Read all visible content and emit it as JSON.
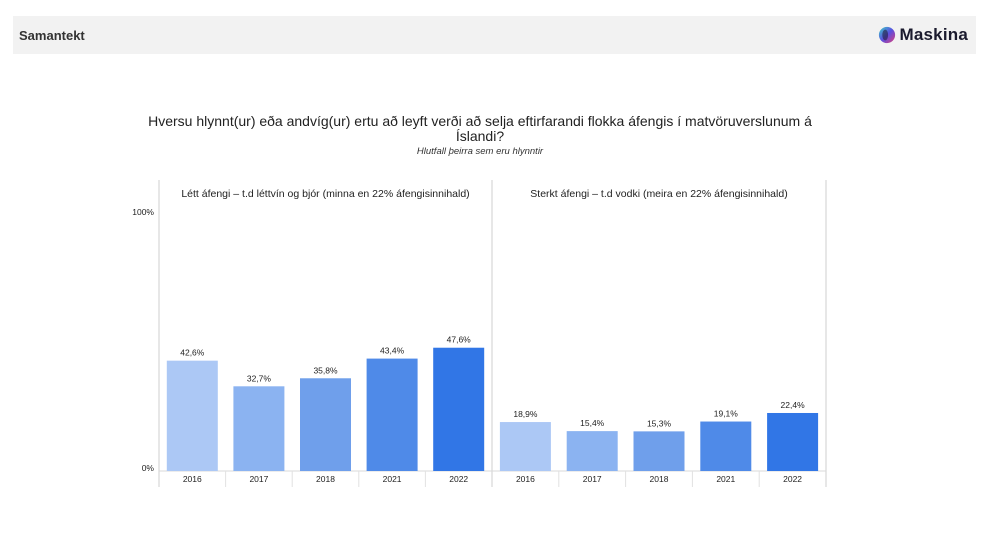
{
  "header": {
    "title": "Samantekt",
    "brand_name": "Maskina"
  },
  "chart_data": {
    "type": "bar",
    "title": "Hversu hlynnt(ur) eða andvíg(ur) ertu að leyft verði að selja eftirfarandi flokka áfengis í matvöruverslunum á Íslandi?",
    "subtitle": "Hlutfall þeirra sem eru hlynntir",
    "ylim": [
      0,
      100
    ],
    "y_tick_labels": [
      "100%",
      "0%"
    ],
    "panels": [
      {
        "label": "Létt áfengi – t.d léttvín og bjór (minna en 22% áfengisinnihald)",
        "categories": [
          "2016",
          "2017",
          "2018",
          "2021",
          "2022"
        ],
        "values": [
          42.6,
          32.7,
          35.8,
          43.4,
          47.6
        ],
        "value_labels": [
          "42,6%",
          "32,7%",
          "35,8%",
          "43,4%",
          "47,6%"
        ]
      },
      {
        "label": "Sterkt áfengi – t.d vodki (meira en 22% áfengisinnihald)",
        "categories": [
          "2016",
          "2017",
          "2018",
          "2021",
          "2022"
        ],
        "values": [
          18.9,
          15.4,
          15.3,
          19.1,
          22.4
        ],
        "value_labels": [
          "18,9%",
          "15,4%",
          "15,3%",
          "19,1%",
          "22,4%"
        ]
      }
    ],
    "colors": [
      "#acc8f5",
      "#8bb3f1",
      "#6f9feb",
      "#4f8ae8",
      "#3176e6"
    ],
    "grid": false
  }
}
